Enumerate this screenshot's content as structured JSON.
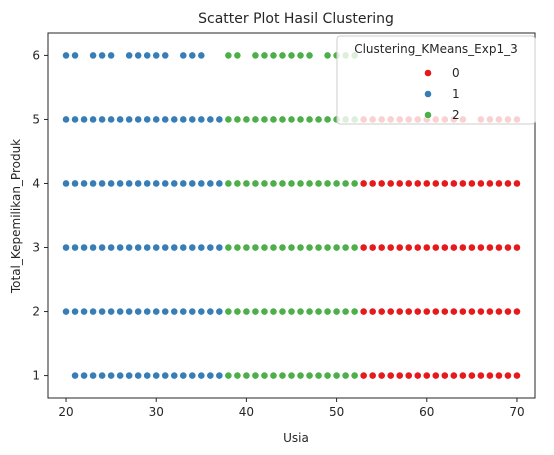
{
  "chart_data": {
    "type": "scatter",
    "title": "Scatter Plot Hasil Clustering",
    "xlabel": "Usia",
    "ylabel": "Total_Kepemilikan_Produk",
    "xlim": [
      18,
      72
    ],
    "ylim": [
      0.65,
      6.35
    ],
    "xticks": [
      20,
      30,
      40,
      50,
      60,
      70
    ],
    "yticks": [
      1,
      2,
      3,
      4,
      5,
      6
    ],
    "grid": false,
    "legend": {
      "title": "Clustering_KMeans_Exp1_3",
      "placement": "top-right",
      "entries": [
        "0",
        "1",
        "2"
      ]
    },
    "colors": {
      "0": "#e41a1c",
      "1": "#377eb8",
      "2": "#4daf4a"
    },
    "series": [
      {
        "name": "0",
        "points": [
          {
            "y": 2,
            "x_range": [
              53,
              70
            ]
          },
          {
            "y": 3,
            "x_range": [
              53,
              70
            ]
          },
          {
            "y": 4,
            "x_range": [
              53,
              70
            ]
          },
          {
            "y": 1,
            "x_range": [
              53,
              70
            ]
          },
          {
            "y": 5,
            "x_list": [
              53,
              54,
              55,
              56,
              57,
              58,
              59,
              60,
              61,
              62,
              63,
              64,
              66,
              67,
              68,
              69,
              70
            ]
          }
        ]
      },
      {
        "name": "1",
        "points": [
          {
            "y": 1,
            "x_range": [
              21,
              37
            ]
          },
          {
            "y": 2,
            "x_range": [
              20,
              37
            ]
          },
          {
            "y": 3,
            "x_range": [
              20,
              37
            ]
          },
          {
            "y": 4,
            "x_range": [
              20,
              37
            ]
          },
          {
            "y": 5,
            "x_range": [
              20,
              37
            ]
          },
          {
            "y": 6,
            "x_list": [
              20,
              21,
              23,
              24,
              25,
              27,
              28,
              29,
              30,
              31,
              33,
              34,
              35
            ]
          }
        ]
      },
      {
        "name": "2",
        "points": [
          {
            "y": 1,
            "x_range": [
              38,
              52
            ]
          },
          {
            "y": 2,
            "x_range": [
              38,
              52
            ]
          },
          {
            "y": 3,
            "x_range": [
              38,
              52
            ]
          },
          {
            "y": 4,
            "x_range": [
              38,
              52
            ]
          },
          {
            "y": 5,
            "x_range": [
              38,
              52
            ]
          },
          {
            "y": 6,
            "x_list": [
              38,
              39,
              41,
              42,
              43,
              44,
              45,
              46,
              47,
              49,
              50,
              51,
              52
            ]
          }
        ]
      }
    ]
  }
}
